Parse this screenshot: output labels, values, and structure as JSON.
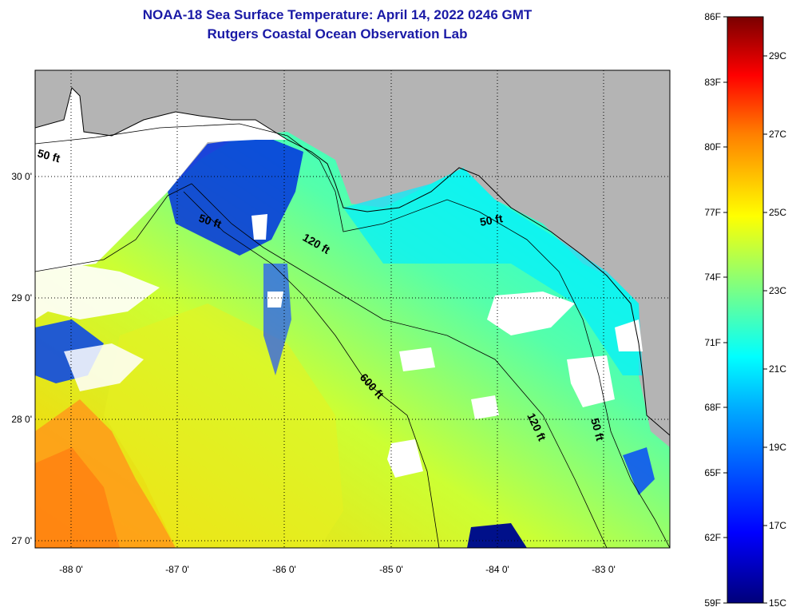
{
  "title": {
    "line1": "NOAA-18 Sea Surface Temperature:  April 14, 2022 0246 GMT",
    "line2": "Rutgers Coastal Ocean Observation Lab"
  },
  "map": {
    "lat_labels": [
      "30 0'",
      "29 0'",
      "28 0'",
      "27 0'"
    ],
    "lon_labels": [
      "-88 0'",
      "-87 0'",
      "-86 0'",
      "-85 0'",
      "-84 0'",
      "-83 0'"
    ],
    "contour_labels": [
      "50 ft",
      "50 ft",
      "120 ft",
      "50 ft",
      "600 ft",
      "120 ft",
      "50 ft"
    ],
    "colors": {
      "land": "#b4b4b4",
      "cloud": "#ffffff"
    }
  },
  "colorbar": {
    "f_labels": [
      "86F",
      "83F",
      "80F",
      "77F",
      "74F",
      "71F",
      "68F",
      "65F",
      "62F",
      "59F"
    ],
    "c_labels": [
      "29C",
      "27C",
      "25C",
      "23C",
      "21C",
      "19C",
      "17C",
      "15C"
    ],
    "colors": [
      "#000080",
      "#0000ff",
      "#00ffff",
      "#ffff00",
      "#ff0000",
      "#800000"
    ]
  }
}
